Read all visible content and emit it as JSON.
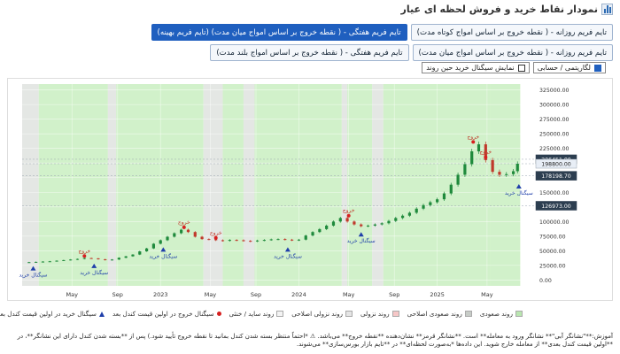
{
  "page": {
    "title": "نمودار نقاط خرید و فروش لحظه ای عیار",
    "icon": "bar-chart-icon"
  },
  "timeframes": {
    "row1": [
      {
        "label": "تایم فریم روزانه - ( نقطه خروج بر اساس امواج کوتاه مدت)",
        "active": false
      },
      {
        "label": "تایم فریم هفتگی - ( نقطه خروج بر اساس امواج میان مدت) (تایم فریم بهینه)",
        "active": true
      }
    ],
    "row2": [
      {
        "label": "تایم فریم روزانه - ( نقطه خروج بر اساس امواج میان مدت)",
        "active": false
      },
      {
        "label": "تایم فریم هفتگی - ( نقطه خروج بر اساس امواج بلند مدت)",
        "active": false
      }
    ]
  },
  "options": {
    "log_toggle": {
      "label": "لگاریتمی / حسابی",
      "checked": true
    },
    "show_signal": {
      "label": "نمایش سیگنال خرید حین روند",
      "checked": false
    }
  },
  "chart_data": {
    "type": "candlestick",
    "y_ticks": [
      0,
      25000,
      50000,
      75000,
      100000,
      125000,
      150000,
      175000,
      200000,
      225000,
      250000,
      275000,
      300000,
      325000
    ],
    "y_tick_labels": [
      "0.00",
      "25000.00",
      "50000.00",
      "75000.00",
      "100000.00",
      "125000.00",
      "150000.00",
      "175000.00",
      "200000.00",
      "225000.00",
      "250000.00",
      "275000.00",
      "300000.00",
      "325000.00"
    ],
    "ylim": [
      -10000,
      335000
    ],
    "x_range": [
      2022.0,
      2025.7
    ],
    "x_ticks": [
      {
        "t": 2022.36,
        "label": "May"
      },
      {
        "t": 2022.69,
        "label": "Sep"
      },
      {
        "t": 2023.0,
        "label": "2023"
      },
      {
        "t": 2023.36,
        "label": "May"
      },
      {
        "t": 2023.69,
        "label": "Sep"
      },
      {
        "t": 2024.0,
        "label": "2024"
      },
      {
        "t": 2024.36,
        "label": "May"
      },
      {
        "t": 2024.69,
        "label": "Sep"
      },
      {
        "t": 2025.0,
        "label": "2025"
      },
      {
        "t": 2025.36,
        "label": "May"
      }
    ],
    "price_labels": [
      {
        "value": 206451,
        "label": "206451.00",
        "style": "dark"
      },
      {
        "value": 198800,
        "label": "198800.00",
        "style": "light"
      },
      {
        "value": 178198.7,
        "label": "178198.70",
        "style": "dark"
      },
      {
        "value": 126973,
        "label": "126973.00",
        "style": "dark"
      }
    ],
    "horizontal_lines": [
      206451,
      198800,
      178198.7,
      126973
    ],
    "closes": [
      {
        "t": 2022.0,
        "v": 30000
      },
      {
        "t": 2022.05,
        "v": 30500
      },
      {
        "t": 2022.1,
        "v": 31000
      },
      {
        "t": 2022.15,
        "v": 31500
      },
      {
        "t": 2022.2,
        "v": 32000
      },
      {
        "t": 2022.25,
        "v": 33000
      },
      {
        "t": 2022.3,
        "v": 34000
      },
      {
        "t": 2022.35,
        "v": 35000
      },
      {
        "t": 2022.4,
        "v": 36000
      },
      {
        "t": 2022.45,
        "v": 37500
      },
      {
        "t": 2022.5,
        "v": 37000
      },
      {
        "t": 2022.55,
        "v": 35500
      },
      {
        "t": 2022.6,
        "v": 34000
      },
      {
        "t": 2022.65,
        "v": 35000
      },
      {
        "t": 2022.7,
        "v": 38000
      },
      {
        "t": 2022.75,
        "v": 40500
      },
      {
        "t": 2022.8,
        "v": 43500
      },
      {
        "t": 2022.85,
        "v": 49000
      },
      {
        "t": 2022.9,
        "v": 54000
      },
      {
        "t": 2022.95,
        "v": 62000
      },
      {
        "t": 2023.0,
        "v": 68000
      },
      {
        "t": 2023.05,
        "v": 74000
      },
      {
        "t": 2023.1,
        "v": 80000
      },
      {
        "t": 2023.15,
        "v": 86000
      },
      {
        "t": 2023.2,
        "v": 82000
      },
      {
        "t": 2023.25,
        "v": 74000
      },
      {
        "t": 2023.3,
        "v": 70000
      },
      {
        "t": 2023.35,
        "v": 69500
      },
      {
        "t": 2023.4,
        "v": 68000
      },
      {
        "t": 2023.45,
        "v": 67000
      },
      {
        "t": 2023.5,
        "v": 68500
      },
      {
        "t": 2023.55,
        "v": 68000
      },
      {
        "t": 2023.6,
        "v": 67000
      },
      {
        "t": 2023.65,
        "v": 66000
      },
      {
        "t": 2023.7,
        "v": 67500
      },
      {
        "t": 2023.75,
        "v": 68500
      },
      {
        "t": 2023.8,
        "v": 69500
      },
      {
        "t": 2023.85,
        "v": 70000
      },
      {
        "t": 2023.9,
        "v": 69000
      },
      {
        "t": 2023.95,
        "v": 68000
      },
      {
        "t": 2024.0,
        "v": 69000
      },
      {
        "t": 2024.05,
        "v": 76000
      },
      {
        "t": 2024.1,
        "v": 82000
      },
      {
        "t": 2024.15,
        "v": 87000
      },
      {
        "t": 2024.2,
        "v": 93000
      },
      {
        "t": 2024.25,
        "v": 100000
      },
      {
        "t": 2024.3,
        "v": 106000
      },
      {
        "t": 2024.35,
        "v": 100000
      },
      {
        "t": 2024.4,
        "v": 95000
      },
      {
        "t": 2024.45,
        "v": 92000
      },
      {
        "t": 2024.5,
        "v": 93000
      },
      {
        "t": 2024.55,
        "v": 95000
      },
      {
        "t": 2024.6,
        "v": 97000
      },
      {
        "t": 2024.65,
        "v": 101000
      },
      {
        "t": 2024.7,
        "v": 106000
      },
      {
        "t": 2024.75,
        "v": 110000
      },
      {
        "t": 2024.8,
        "v": 115000
      },
      {
        "t": 2024.85,
        "v": 122000
      },
      {
        "t": 2024.9,
        "v": 128000
      },
      {
        "t": 2024.95,
        "v": 133000
      },
      {
        "t": 2025.0,
        "v": 138000
      },
      {
        "t": 2025.05,
        "v": 148000
      },
      {
        "t": 2025.1,
        "v": 163000
      },
      {
        "t": 2025.15,
        "v": 180000
      },
      {
        "t": 2025.2,
        "v": 198000
      },
      {
        "t": 2025.25,
        "v": 220000
      },
      {
        "t": 2025.3,
        "v": 232000
      },
      {
        "t": 2025.35,
        "v": 205000
      },
      {
        "t": 2025.4,
        "v": 185000
      },
      {
        "t": 2025.45,
        "v": 180000
      },
      {
        "t": 2025.5,
        "v": 181000
      },
      {
        "t": 2025.55,
        "v": 186000
      },
      {
        "t": 2025.58,
        "v": 198800
      }
    ],
    "trend_bands": [
      {
        "from": 2022.0,
        "to": 2022.12,
        "trend": "sideways"
      },
      {
        "from": 2022.12,
        "to": 2022.62,
        "trend": "up"
      },
      {
        "from": 2022.62,
        "to": 2022.68,
        "trend": "sideways"
      },
      {
        "from": 2022.68,
        "to": 2023.31,
        "trend": "up"
      },
      {
        "from": 2023.31,
        "to": 2023.45,
        "trend": "sideways"
      },
      {
        "from": 2023.45,
        "to": 2023.6,
        "trend": "up"
      },
      {
        "from": 2023.6,
        "to": 2023.68,
        "trend": "sideways"
      },
      {
        "from": 2023.68,
        "to": 2024.31,
        "trend": "up"
      },
      {
        "from": 2024.31,
        "to": 2024.35,
        "trend": "sideways"
      },
      {
        "from": 2024.35,
        "to": 2024.53,
        "trend": "up"
      },
      {
        "from": 2024.53,
        "to": 2024.61,
        "trend": "sideways"
      },
      {
        "from": 2024.61,
        "to": 2025.38,
        "trend": "up"
      },
      {
        "from": 2025.38,
        "to": 2025.6,
        "trend": "up"
      }
    ],
    "buy_signals": [
      {
        "t": 2022.08,
        "v": 30000,
        "label": "سیگنال خرید"
      },
      {
        "t": 2022.52,
        "v": 34000,
        "label": "سیگنال خرید"
      },
      {
        "t": 2023.02,
        "v": 62000,
        "label": "سیگنال خرید"
      },
      {
        "t": 2023.92,
        "v": 62000,
        "label": "سیگنال خرید"
      },
      {
        "t": 2024.45,
        "v": 88000,
        "label": "سیگنال خرید"
      },
      {
        "t": 2025.59,
        "v": 170000,
        "label": "سیگنال خرید"
      }
    ],
    "exit_signals": [
      {
        "t": 2022.45,
        "v": 41000,
        "label": "خروج"
      },
      {
        "t": 2023.17,
        "v": 90000,
        "label": "خروج"
      },
      {
        "t": 2023.4,
        "v": 72000,
        "label": "خروج"
      },
      {
        "t": 2024.36,
        "v": 110000,
        "label": "خروج"
      },
      {
        "t": 2025.26,
        "v": 236000,
        "label": "خروج"
      },
      {
        "t": 2025.35,
        "v": 210000,
        "label": "خروج"
      }
    ]
  },
  "legend": [
    {
      "label": "روند صعودی",
      "kind": "swatch",
      "color": "#b9e6b0"
    },
    {
      "label": "روند صعودی اصلاحی",
      "kind": "swatch",
      "color": "#c7ccc7"
    },
    {
      "label": "روند نزولی",
      "kind": "swatch",
      "color": "#f6c7c7"
    },
    {
      "label": "روند نزولی اصلاحی",
      "kind": "swatch",
      "color": "#e5e5e5"
    },
    {
      "label": "روند ساید / خنثی",
      "kind": "swatch",
      "color": "#f3f3f3"
    },
    {
      "label": "سیگنال خروج در اولین قیمت کندل بعد",
      "kind": "dot",
      "color": "#d62020"
    },
    {
      "label": "سیگنال خرید در اولین قیمت کندل بعد",
      "kind": "tri",
      "color": "#1f3faa"
    }
  ],
  "note": {
    "line1": "آموزش:**\"نشانگر آبی\"** نشانگر ورود به معامله** است. **نشانگر قرمز** نشان‌دهنده **نقطه خروج** می‌باشد. ⚠ *احتماً منتظر بسته شدن کندل بمانید تا نقطه خروج تأیید شود.) پس از **بسته شدن کندل دارای این نشانگر**، در",
    "line2": "**اولین قیمت کندل بعدی** از معامله خارج شوید. این داده‌ها *به‌صورت لحظه‌ای** در **تایم بازار بورس‌سازی** می‌شوند."
  }
}
